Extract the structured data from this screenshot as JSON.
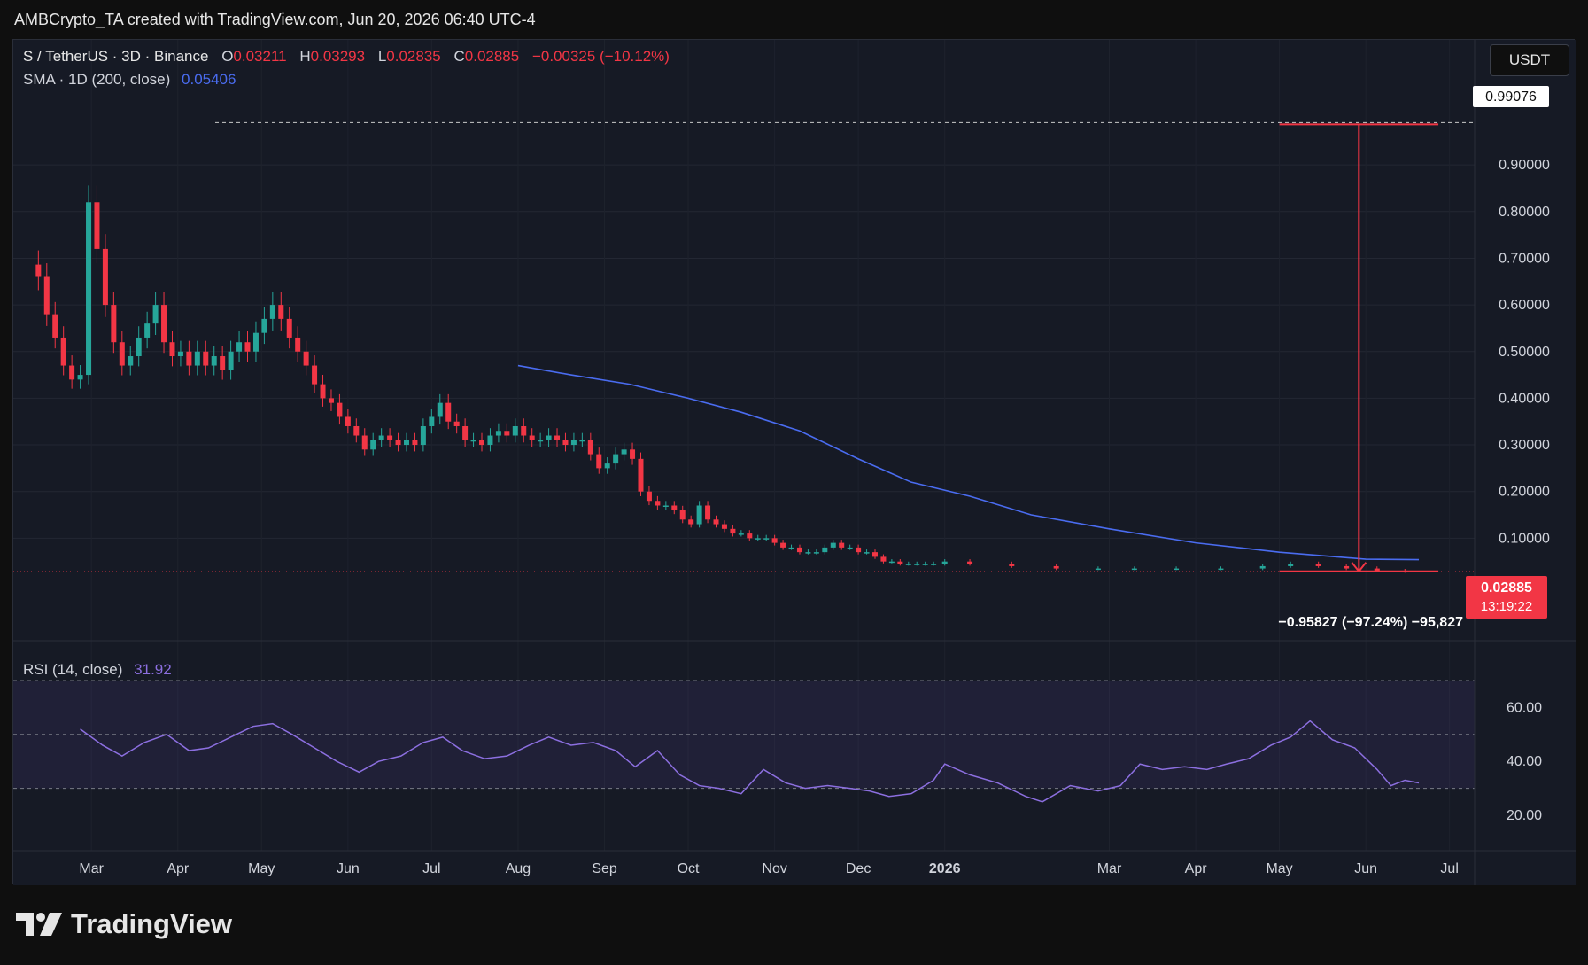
{
  "header": {
    "text": "AMBCrypto_TA created with TradingView.com, Jun 20, 2026 06:40 UTC-4"
  },
  "legend": {
    "symbol": "S / TetherUS · 3D · Binance",
    "o_label": "O",
    "o_value": "0.03211",
    "h_label": "H",
    "h_value": "0.03293",
    "l_label": "L",
    "l_value": "0.02835",
    "c_label": "C",
    "c_value": "0.02885",
    "change": "−0.00325 (−10.12%)",
    "sma_label": "SMA · 1D (200, close)",
    "sma_value": "0.05406"
  },
  "price_scale": {
    "unit_button": "USDT"
  },
  "rsi": {
    "label": "RSI (14, close)",
    "value": "31.92"
  },
  "measure": {
    "label": "−0.95827 (−97.24%) −95,827"
  },
  "last_price": {
    "value": "0.02885",
    "countdown": "13:19:22"
  },
  "peak_label": "0.99076",
  "footer": {
    "brand": "TradingView"
  },
  "colors": {
    "up": "#26a69a",
    "down": "#f23645",
    "sma": "#4a6cf0",
    "rsi": "#8c6fe0",
    "bg": "#161a25"
  },
  "chart_data": [
    {
      "type": "candlestick",
      "title": "S / TetherUS · 3D · Binance",
      "ylim": [
        0,
        1.05
      ],
      "yticks": [
        "0.90000",
        "0.80000",
        "0.70000",
        "0.60000",
        "0.50000",
        "0.40000",
        "0.30000",
        "0.20000",
        "0.10000"
      ],
      "xticks": [
        "Mar",
        "Apr",
        "May",
        "Jun",
        "Jul",
        "Aug",
        "Sep",
        "Oct",
        "Nov",
        "Dec",
        "2026",
        "Mar",
        "Apr",
        "May",
        "Jun",
        "Jul"
      ],
      "x_dates": [
        "2025-03-01",
        "2025-04-01",
        "2025-05-01",
        "2025-06-01",
        "2025-07-01",
        "2025-08-01",
        "2025-09-01",
        "2025-10-01",
        "2025-11-01",
        "2025-12-01",
        "2026-01-01",
        "2026-03-01",
        "2026-04-01",
        "2026-05-01",
        "2026-06-01",
        "2026-07-01"
      ],
      "close_series": [
        [
          "2025-02-10",
          0.66
        ],
        [
          "2025-02-13",
          0.58
        ],
        [
          "2025-02-16",
          0.53
        ],
        [
          "2025-02-19",
          0.47
        ],
        [
          "2025-02-22",
          0.44
        ],
        [
          "2025-02-25",
          0.45
        ],
        [
          "2025-02-28",
          0.82
        ],
        [
          "2025-03-03",
          0.72
        ],
        [
          "2025-03-06",
          0.6
        ],
        [
          "2025-03-09",
          0.52
        ],
        [
          "2025-03-12",
          0.47
        ],
        [
          "2025-03-15",
          0.49
        ],
        [
          "2025-03-18",
          0.53
        ],
        [
          "2025-03-21",
          0.56
        ],
        [
          "2025-03-24",
          0.6
        ],
        [
          "2025-03-27",
          0.52
        ],
        [
          "2025-03-30",
          0.49
        ],
        [
          "2025-04-02",
          0.5
        ],
        [
          "2025-04-05",
          0.47
        ],
        [
          "2025-04-08",
          0.5
        ],
        [
          "2025-04-11",
          0.47
        ],
        [
          "2025-04-14",
          0.49
        ],
        [
          "2025-04-17",
          0.46
        ],
        [
          "2025-04-20",
          0.5
        ],
        [
          "2025-04-23",
          0.52
        ],
        [
          "2025-04-26",
          0.5
        ],
        [
          "2025-04-29",
          0.54
        ],
        [
          "2025-05-02",
          0.57
        ],
        [
          "2025-05-05",
          0.6
        ],
        [
          "2025-05-08",
          0.57
        ],
        [
          "2025-05-11",
          0.53
        ],
        [
          "2025-05-14",
          0.5
        ],
        [
          "2025-05-17",
          0.47
        ],
        [
          "2025-05-20",
          0.43
        ],
        [
          "2025-05-23",
          0.4
        ],
        [
          "2025-05-26",
          0.39
        ],
        [
          "2025-05-29",
          0.36
        ],
        [
          "2025-06-01",
          0.34
        ],
        [
          "2025-06-04",
          0.32
        ],
        [
          "2025-06-07",
          0.29
        ],
        [
          "2025-06-10",
          0.31
        ],
        [
          "2025-06-13",
          0.32
        ],
        [
          "2025-06-16",
          0.31
        ],
        [
          "2025-06-19",
          0.3
        ],
        [
          "2025-06-22",
          0.31
        ],
        [
          "2025-06-25",
          0.3
        ],
        [
          "2025-06-28",
          0.34
        ],
        [
          "2025-07-01",
          0.36
        ],
        [
          "2025-07-04",
          0.39
        ],
        [
          "2025-07-07",
          0.35
        ],
        [
          "2025-07-10",
          0.34
        ],
        [
          "2025-07-13",
          0.31
        ],
        [
          "2025-07-16",
          0.31
        ],
        [
          "2025-07-19",
          0.3
        ],
        [
          "2025-07-22",
          0.32
        ],
        [
          "2025-07-25",
          0.33
        ],
        [
          "2025-07-28",
          0.32
        ],
        [
          "2025-07-31",
          0.34
        ],
        [
          "2025-08-03",
          0.32
        ],
        [
          "2025-08-06",
          0.31
        ],
        [
          "2025-08-09",
          0.31
        ],
        [
          "2025-08-12",
          0.32
        ],
        [
          "2025-08-15",
          0.31
        ],
        [
          "2025-08-18",
          0.3
        ],
        [
          "2025-08-21",
          0.31
        ],
        [
          "2025-08-24",
          0.31
        ],
        [
          "2025-08-27",
          0.28
        ],
        [
          "2025-08-30",
          0.25
        ],
        [
          "2025-09-02",
          0.26
        ],
        [
          "2025-09-05",
          0.28
        ],
        [
          "2025-09-08",
          0.29
        ],
        [
          "2025-09-11",
          0.27
        ],
        [
          "2025-09-14",
          0.2
        ],
        [
          "2025-09-17",
          0.18
        ],
        [
          "2025-09-20",
          0.17
        ],
        [
          "2025-09-23",
          0.17
        ],
        [
          "2025-09-26",
          0.16
        ],
        [
          "2025-09-29",
          0.14
        ],
        [
          "2025-10-02",
          0.13
        ],
        [
          "2025-10-05",
          0.17
        ],
        [
          "2025-10-08",
          0.14
        ],
        [
          "2025-10-11",
          0.13
        ],
        [
          "2025-10-14",
          0.12
        ],
        [
          "2025-10-17",
          0.11
        ],
        [
          "2025-10-20",
          0.11
        ],
        [
          "2025-10-23",
          0.1
        ],
        [
          "2025-10-26",
          0.1
        ],
        [
          "2025-10-29",
          0.1
        ],
        [
          "2025-11-01",
          0.09
        ],
        [
          "2025-11-04",
          0.08
        ],
        [
          "2025-11-07",
          0.08
        ],
        [
          "2025-11-10",
          0.07
        ],
        [
          "2025-11-13",
          0.07
        ],
        [
          "2025-11-16",
          0.07
        ],
        [
          "2025-11-19",
          0.08
        ],
        [
          "2025-11-22",
          0.09
        ],
        [
          "2025-11-25",
          0.08
        ],
        [
          "2025-11-28",
          0.08
        ],
        [
          "2025-12-01",
          0.07
        ],
        [
          "2025-12-04",
          0.07
        ],
        [
          "2025-12-07",
          0.06
        ],
        [
          "2025-12-10",
          0.05
        ],
        [
          "2025-12-13",
          0.05
        ],
        [
          "2025-12-16",
          0.045
        ],
        [
          "2025-12-19",
          0.045
        ],
        [
          "2025-12-22",
          0.045
        ],
        [
          "2025-12-25",
          0.045
        ],
        [
          "2025-12-28",
          0.045
        ],
        [
          "2026-01-01",
          0.05
        ],
        [
          "2026-01-10",
          0.045
        ],
        [
          "2026-01-25",
          0.04
        ],
        [
          "2026-02-10",
          0.035
        ],
        [
          "2026-02-25",
          0.035
        ],
        [
          "2026-03-10",
          0.035
        ],
        [
          "2026-03-25",
          0.035
        ],
        [
          "2026-04-10",
          0.035
        ],
        [
          "2026-04-25",
          0.04
        ],
        [
          "2026-05-05",
          0.045
        ],
        [
          "2026-05-15",
          0.04
        ],
        [
          "2026-05-25",
          0.035
        ],
        [
          "2026-06-05",
          0.03
        ],
        [
          "2026-06-15",
          0.029
        ]
      ],
      "sma_series": [
        [
          "2025-08-01",
          0.47
        ],
        [
          "2025-08-20",
          0.45
        ],
        [
          "2025-09-10",
          0.43
        ],
        [
          "2025-10-01",
          0.4
        ],
        [
          "2025-10-20",
          0.37
        ],
        [
          "2025-11-10",
          0.33
        ],
        [
          "2025-12-01",
          0.27
        ],
        [
          "2025-12-20",
          0.22
        ],
        [
          "2026-01-10",
          0.19
        ],
        [
          "2026-02-01",
          0.15
        ],
        [
          "2026-03-01",
          0.12
        ],
        [
          "2026-04-01",
          0.09
        ],
        [
          "2026-05-01",
          0.07
        ],
        [
          "2026-06-01",
          0.055
        ],
        [
          "2026-06-20",
          0.054
        ]
      ],
      "annotations": {
        "peak": 0.99076,
        "last_close": 0.02885,
        "sma_value": 0.05406,
        "measure_change": -0.95827,
        "measure_change_pct": -97.24
      }
    },
    {
      "type": "line",
      "title": "RSI (14, close)",
      "ylim": [
        15,
        70
      ],
      "yticks": [
        "60.00",
        "40.00",
        "20.00"
      ],
      "bands": [
        30,
        50,
        70
      ],
      "series": [
        {
          "values": [
            [
              "2025-02-25",
              52
            ],
            [
              "2025-03-05",
              46
            ],
            [
              "2025-03-12",
              42
            ],
            [
              "2025-03-20",
              47
            ],
            [
              "2025-03-28",
              50
            ],
            [
              "2025-04-05",
              44
            ],
            [
              "2025-04-12",
              45
            ],
            [
              "2025-04-20",
              49
            ],
            [
              "2025-04-28",
              53
            ],
            [
              "2025-05-05",
              54
            ],
            [
              "2025-05-12",
              50
            ],
            [
              "2025-05-20",
              45
            ],
            [
              "2025-05-28",
              40
            ],
            [
              "2025-06-05",
              36
            ],
            [
              "2025-06-12",
              40
            ],
            [
              "2025-06-20",
              42
            ],
            [
              "2025-06-28",
              47
            ],
            [
              "2025-07-05",
              49
            ],
            [
              "2025-07-12",
              44
            ],
            [
              "2025-07-20",
              41
            ],
            [
              "2025-07-28",
              42
            ],
            [
              "2025-08-05",
              46
            ],
            [
              "2025-08-12",
              49
            ],
            [
              "2025-08-20",
              46
            ],
            [
              "2025-08-28",
              47
            ],
            [
              "2025-09-05",
              44
            ],
            [
              "2025-09-12",
              38
            ],
            [
              "2025-09-20",
              44
            ],
            [
              "2025-09-28",
              35
            ],
            [
              "2025-10-05",
              31
            ],
            [
              "2025-10-12",
              30
            ],
            [
              "2025-10-20",
              28
            ],
            [
              "2025-10-28",
              37
            ],
            [
              "2025-11-05",
              32
            ],
            [
              "2025-11-12",
              30
            ],
            [
              "2025-11-20",
              31
            ],
            [
              "2025-11-28",
              30
            ],
            [
              "2025-12-05",
              29
            ],
            [
              "2025-12-12",
              27
            ],
            [
              "2025-12-20",
              28
            ],
            [
              "2025-12-28",
              33
            ],
            [
              "2026-01-01",
              39
            ],
            [
              "2026-01-10",
              35
            ],
            [
              "2026-01-20",
              32
            ],
            [
              "2026-01-30",
              27
            ],
            [
              "2026-02-05",
              25
            ],
            [
              "2026-02-15",
              31
            ],
            [
              "2026-02-25",
              29
            ],
            [
              "2026-03-05",
              31
            ],
            [
              "2026-03-12",
              39
            ],
            [
              "2026-03-20",
              37
            ],
            [
              "2026-03-28",
              38
            ],
            [
              "2026-04-05",
              37
            ],
            [
              "2026-04-12",
              39
            ],
            [
              "2026-04-20",
              41
            ],
            [
              "2026-04-28",
              46
            ],
            [
              "2026-05-05",
              49
            ],
            [
              "2026-05-12",
              55
            ],
            [
              "2026-05-20",
              48
            ],
            [
              "2026-05-28",
              45
            ],
            [
              "2026-06-05",
              37
            ],
            [
              "2026-06-10",
              31
            ],
            [
              "2026-06-15",
              33
            ],
            [
              "2026-06-20",
              32
            ]
          ]
        }
      ]
    }
  ]
}
